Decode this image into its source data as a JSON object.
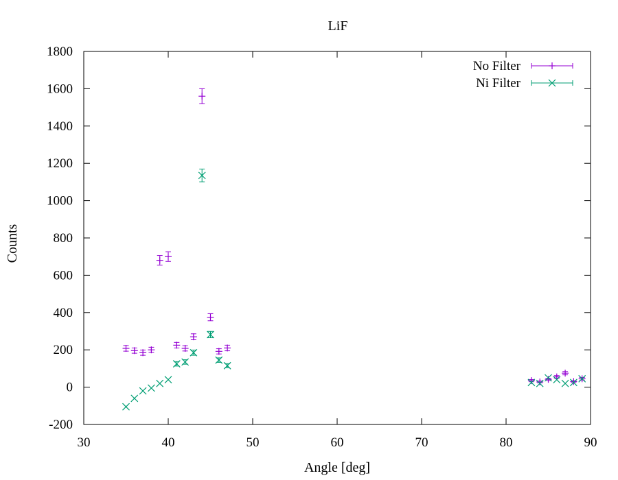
{
  "chart_data": {
    "type": "scatter",
    "title": "LiF",
    "xlabel": "Angle [deg]",
    "ylabel": "Counts",
    "xlim": [
      30,
      90
    ],
    "ylim": [
      -200,
      1800
    ],
    "xticks": [
      30,
      40,
      50,
      60,
      70,
      80,
      90
    ],
    "yticks": [
      -200,
      0,
      200,
      400,
      600,
      800,
      1000,
      1200,
      1400,
      1600,
      1800
    ],
    "grid": false,
    "legend_position": "top-right",
    "error_bars": "y",
    "series": [
      {
        "name": "No Filter",
        "color": "#9400d3",
        "marker": "plus",
        "x": [
          35,
          36,
          37,
          38,
          39,
          40,
          41,
          42,
          43,
          44,
          45,
          46,
          47,
          83,
          84,
          85,
          86,
          87,
          88,
          89
        ],
        "y": [
          208,
          196,
          185,
          200,
          680,
          700,
          225,
          208,
          270,
          1560,
          375,
          192,
          210,
          35,
          28,
          42,
          55,
          75,
          30,
          45
        ],
        "yerr": [
          15,
          14,
          14,
          14,
          26,
          26,
          15,
          14,
          16,
          40,
          19,
          14,
          15,
          6,
          5,
          6,
          7,
          9,
          5,
          7
        ]
      },
      {
        "name": "Ni Filter",
        "color": "#009e73",
        "marker": "x",
        "x": [
          35,
          36,
          37,
          38,
          39,
          40,
          41,
          42,
          43,
          44,
          45,
          46,
          47,
          83,
          84,
          85,
          86,
          87,
          88,
          89
        ],
        "y": [
          -105,
          -60,
          -20,
          -5,
          20,
          40,
          125,
          135,
          185,
          1135,
          282,
          145,
          115,
          25,
          20,
          50,
          40,
          20,
          25,
          45
        ],
        "yerr": [
          0,
          0,
          0,
          0,
          0,
          0,
          12,
          12,
          14,
          34,
          17,
          12,
          11,
          0,
          0,
          0,
          0,
          0,
          0,
          0
        ]
      }
    ]
  }
}
